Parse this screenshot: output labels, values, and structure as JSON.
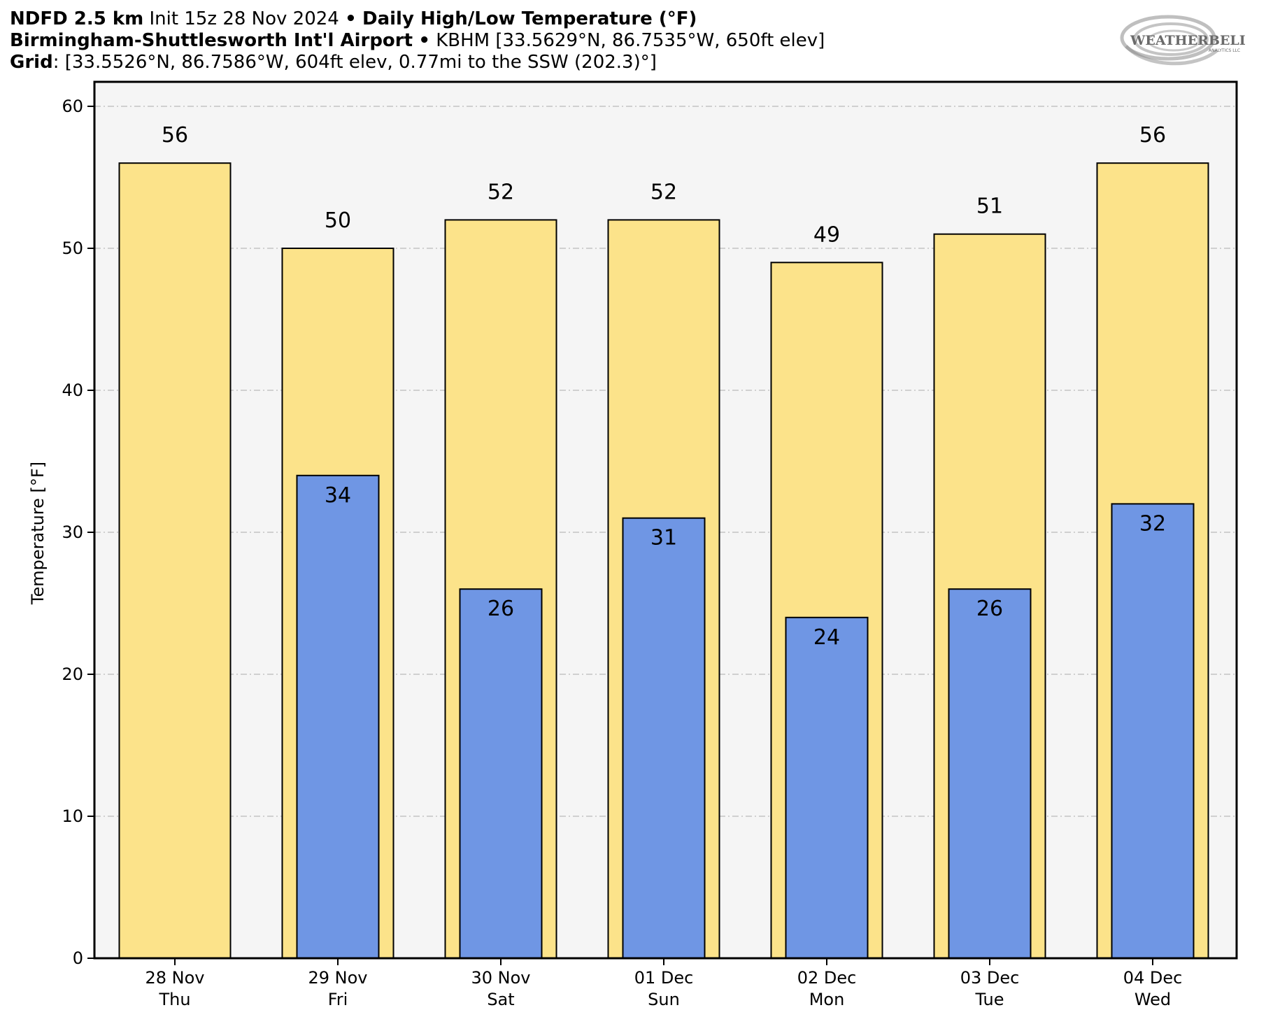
{
  "header": {
    "line1": {
      "model": "NDFD 2.5 km",
      "init": "Init 15z 28 Nov 2024",
      "sep": "•",
      "product": "Daily High/Low Temperature (°F)"
    },
    "line2": {
      "station": "Birmingham-Shuttlesworth Int'l Airport",
      "sep": "•",
      "station_info": "KBHM [33.5629°N, 86.7535°W, 650ft elev]"
    },
    "line3": {
      "grid_label": "Grid",
      "grid_info": ": [33.5526°N, 86.7586°W, 604ft elev, 0.77mi to the SSW (202.3)°]"
    }
  },
  "logo": {
    "text": "WEATHERBELL",
    "sub": "ANALYTICS LLC"
  },
  "chart_data": {
    "type": "bar",
    "title": "Daily High/Low Temperature (°F)",
    "ylabel": "Temperature [°F]",
    "ylim": [
      0,
      60
    ],
    "yticks": [
      0,
      10,
      20,
      30,
      40,
      50,
      60
    ],
    "grid": true,
    "categories": [
      {
        "date": "28 Nov",
        "day": "Thu"
      },
      {
        "date": "29 Nov",
        "day": "Fri"
      },
      {
        "date": "30 Nov",
        "day": "Sat"
      },
      {
        "date": "01 Dec",
        "day": "Sun"
      },
      {
        "date": "02 Dec",
        "day": "Mon"
      },
      {
        "date": "03 Dec",
        "day": "Tue"
      },
      {
        "date": "04 Dec",
        "day": "Wed"
      }
    ],
    "series": [
      {
        "values": [
          56,
          50,
          52,
          52,
          49,
          51,
          56
        ],
        "color": "#fce38a"
      },
      {
        "values": [
          null,
          34,
          26,
          31,
          24,
          26,
          32
        ],
        "color": "#6f96e4"
      }
    ],
    "colors": {
      "plot_bg": "#f5f5f5",
      "grid": "#bbbbbb",
      "edge": "#000000"
    }
  }
}
